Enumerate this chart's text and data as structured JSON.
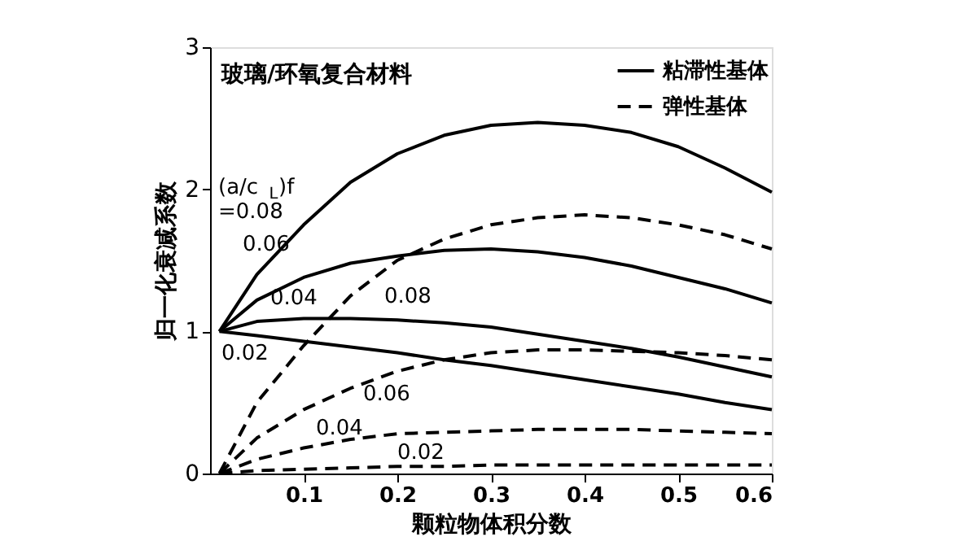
{
  "chart_data": {
    "type": "line",
    "xlabel": "颗粒物体积分数",
    "ylabel": "归一化衰减系数",
    "xlim": [
      0,
      0.6
    ],
    "ylim": [
      0,
      3
    ],
    "xticks": [
      0.1,
      0.2,
      0.3,
      0.4,
      0.5,
      0.6
    ],
    "yticks": [
      0,
      1,
      2,
      3
    ],
    "grid": false,
    "legend": "top right",
    "x": [
      0.01,
      0.05,
      0.1,
      0.15,
      0.2,
      0.25,
      0.3,
      0.35,
      0.4,
      0.45,
      0.5,
      0.55,
      0.6
    ],
    "series": [
      {
        "name": "粘滞性基体",
        "color": "#000000",
        "line_style": "solid",
        "values": [
          1.0,
          1.4,
          1.75,
          2.05,
          2.25,
          2.38,
          2.45,
          2.47,
          2.45,
          2.4,
          2.3,
          2.15,
          1.98
        ]
      },
      {
        "color": "#000000",
        "line_style": "solid",
        "values": [
          1.0,
          1.22,
          1.38,
          1.48,
          1.53,
          1.57,
          1.58,
          1.56,
          1.52,
          1.46,
          1.38,
          1.3,
          1.2
        ]
      },
      {
        "color": "#000000",
        "line_style": "solid",
        "values": [
          1.0,
          1.07,
          1.09,
          1.09,
          1.08,
          1.06,
          1.03,
          0.98,
          0.93,
          0.88,
          0.82,
          0.75,
          0.68
        ]
      },
      {
        "color": "#000000",
        "line_style": "solid",
        "values": [
          1.0,
          0.97,
          0.93,
          0.89,
          0.85,
          0.8,
          0.76,
          0.71,
          0.66,
          0.61,
          0.56,
          0.5,
          0.45
        ]
      },
      {
        "name": "弹性基体",
        "color": "#000000",
        "line_style": "dashed",
        "values": [
          0.0,
          0.5,
          0.9,
          1.25,
          1.5,
          1.65,
          1.75,
          1.8,
          1.82,
          1.8,
          1.75,
          1.68,
          1.58
        ]
      },
      {
        "color": "#000000",
        "line_style": "dashed",
        "values": [
          0.0,
          0.25,
          0.45,
          0.6,
          0.72,
          0.8,
          0.85,
          0.87,
          0.87,
          0.86,
          0.85,
          0.83,
          0.8
        ]
      },
      {
        "color": "#000000",
        "line_style": "dashed",
        "values": [
          0.0,
          0.1,
          0.18,
          0.24,
          0.28,
          0.29,
          0.3,
          0.31,
          0.31,
          0.31,
          0.3,
          0.29,
          0.28
        ]
      },
      {
        "color": "#000000",
        "line_style": "dashed",
        "values": [
          0.0,
          0.02,
          0.03,
          0.04,
          0.05,
          0.05,
          0.06,
          0.06,
          0.06,
          0.06,
          0.06,
          0.06,
          0.06
        ]
      }
    ],
    "annotations": [
      "玻璃/环氧复合材料",
      "(a/c$_{L}$)f\n=0.08",
      "0.06",
      "0.04",
      "0.02",
      "0.08",
      "0.06",
      "0.04",
      "0.02"
    ]
  }
}
